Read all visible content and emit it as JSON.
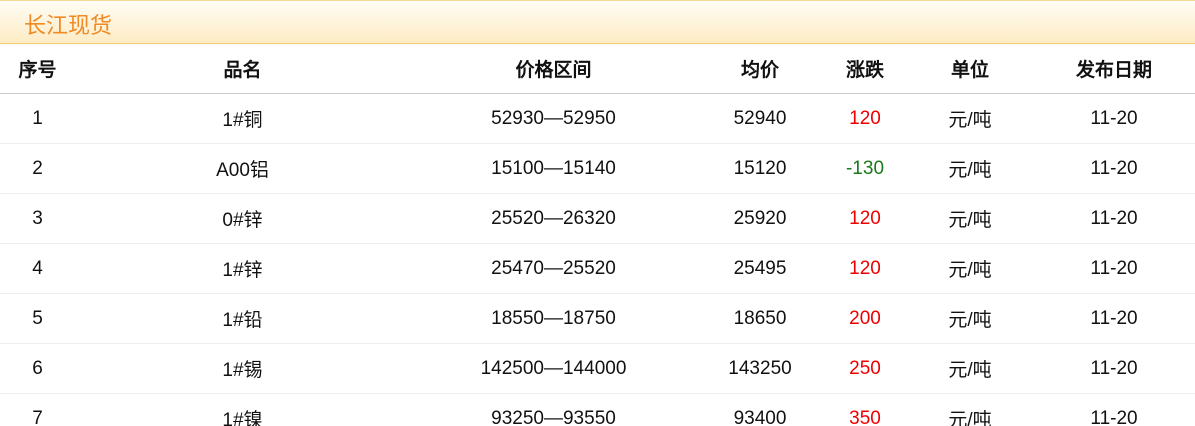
{
  "title": "长江现货",
  "headers": [
    "序号",
    "品名",
    "价格区间",
    "均价",
    "涨跌",
    "单位",
    "发布日期"
  ],
  "colors": {
    "title": "#f08a24",
    "up": "#ee0000",
    "down": "#1a7a1a"
  },
  "rows": [
    {
      "no": "1",
      "name": "1#铜",
      "range": "52930—52950",
      "avg": "52940",
      "change": "120",
      "unit": "元/吨",
      "date": "11-20"
    },
    {
      "no": "2",
      "name": "A00铝",
      "range": "15100—15140",
      "avg": "15120",
      "change": "-130",
      "unit": "元/吨",
      "date": "11-20"
    },
    {
      "no": "3",
      "name": "0#锌",
      "range": "25520—26320",
      "avg": "25920",
      "change": "120",
      "unit": "元/吨",
      "date": "11-20"
    },
    {
      "no": "4",
      "name": "1#锌",
      "range": "25470—25520",
      "avg": "25495",
      "change": "120",
      "unit": "元/吨",
      "date": "11-20"
    },
    {
      "no": "5",
      "name": "1#铅",
      "range": "18550—18750",
      "avg": "18650",
      "change": "200",
      "unit": "元/吨",
      "date": "11-20"
    },
    {
      "no": "6",
      "name": "1#锡",
      "range": "142500—144000",
      "avg": "143250",
      "change": "250",
      "unit": "元/吨",
      "date": "11-20"
    },
    {
      "no": "7",
      "name": "1#镍",
      "range": "93250—93550",
      "avg": "93400",
      "change": "350",
      "unit": "元/吨",
      "date": "11-20"
    }
  ]
}
